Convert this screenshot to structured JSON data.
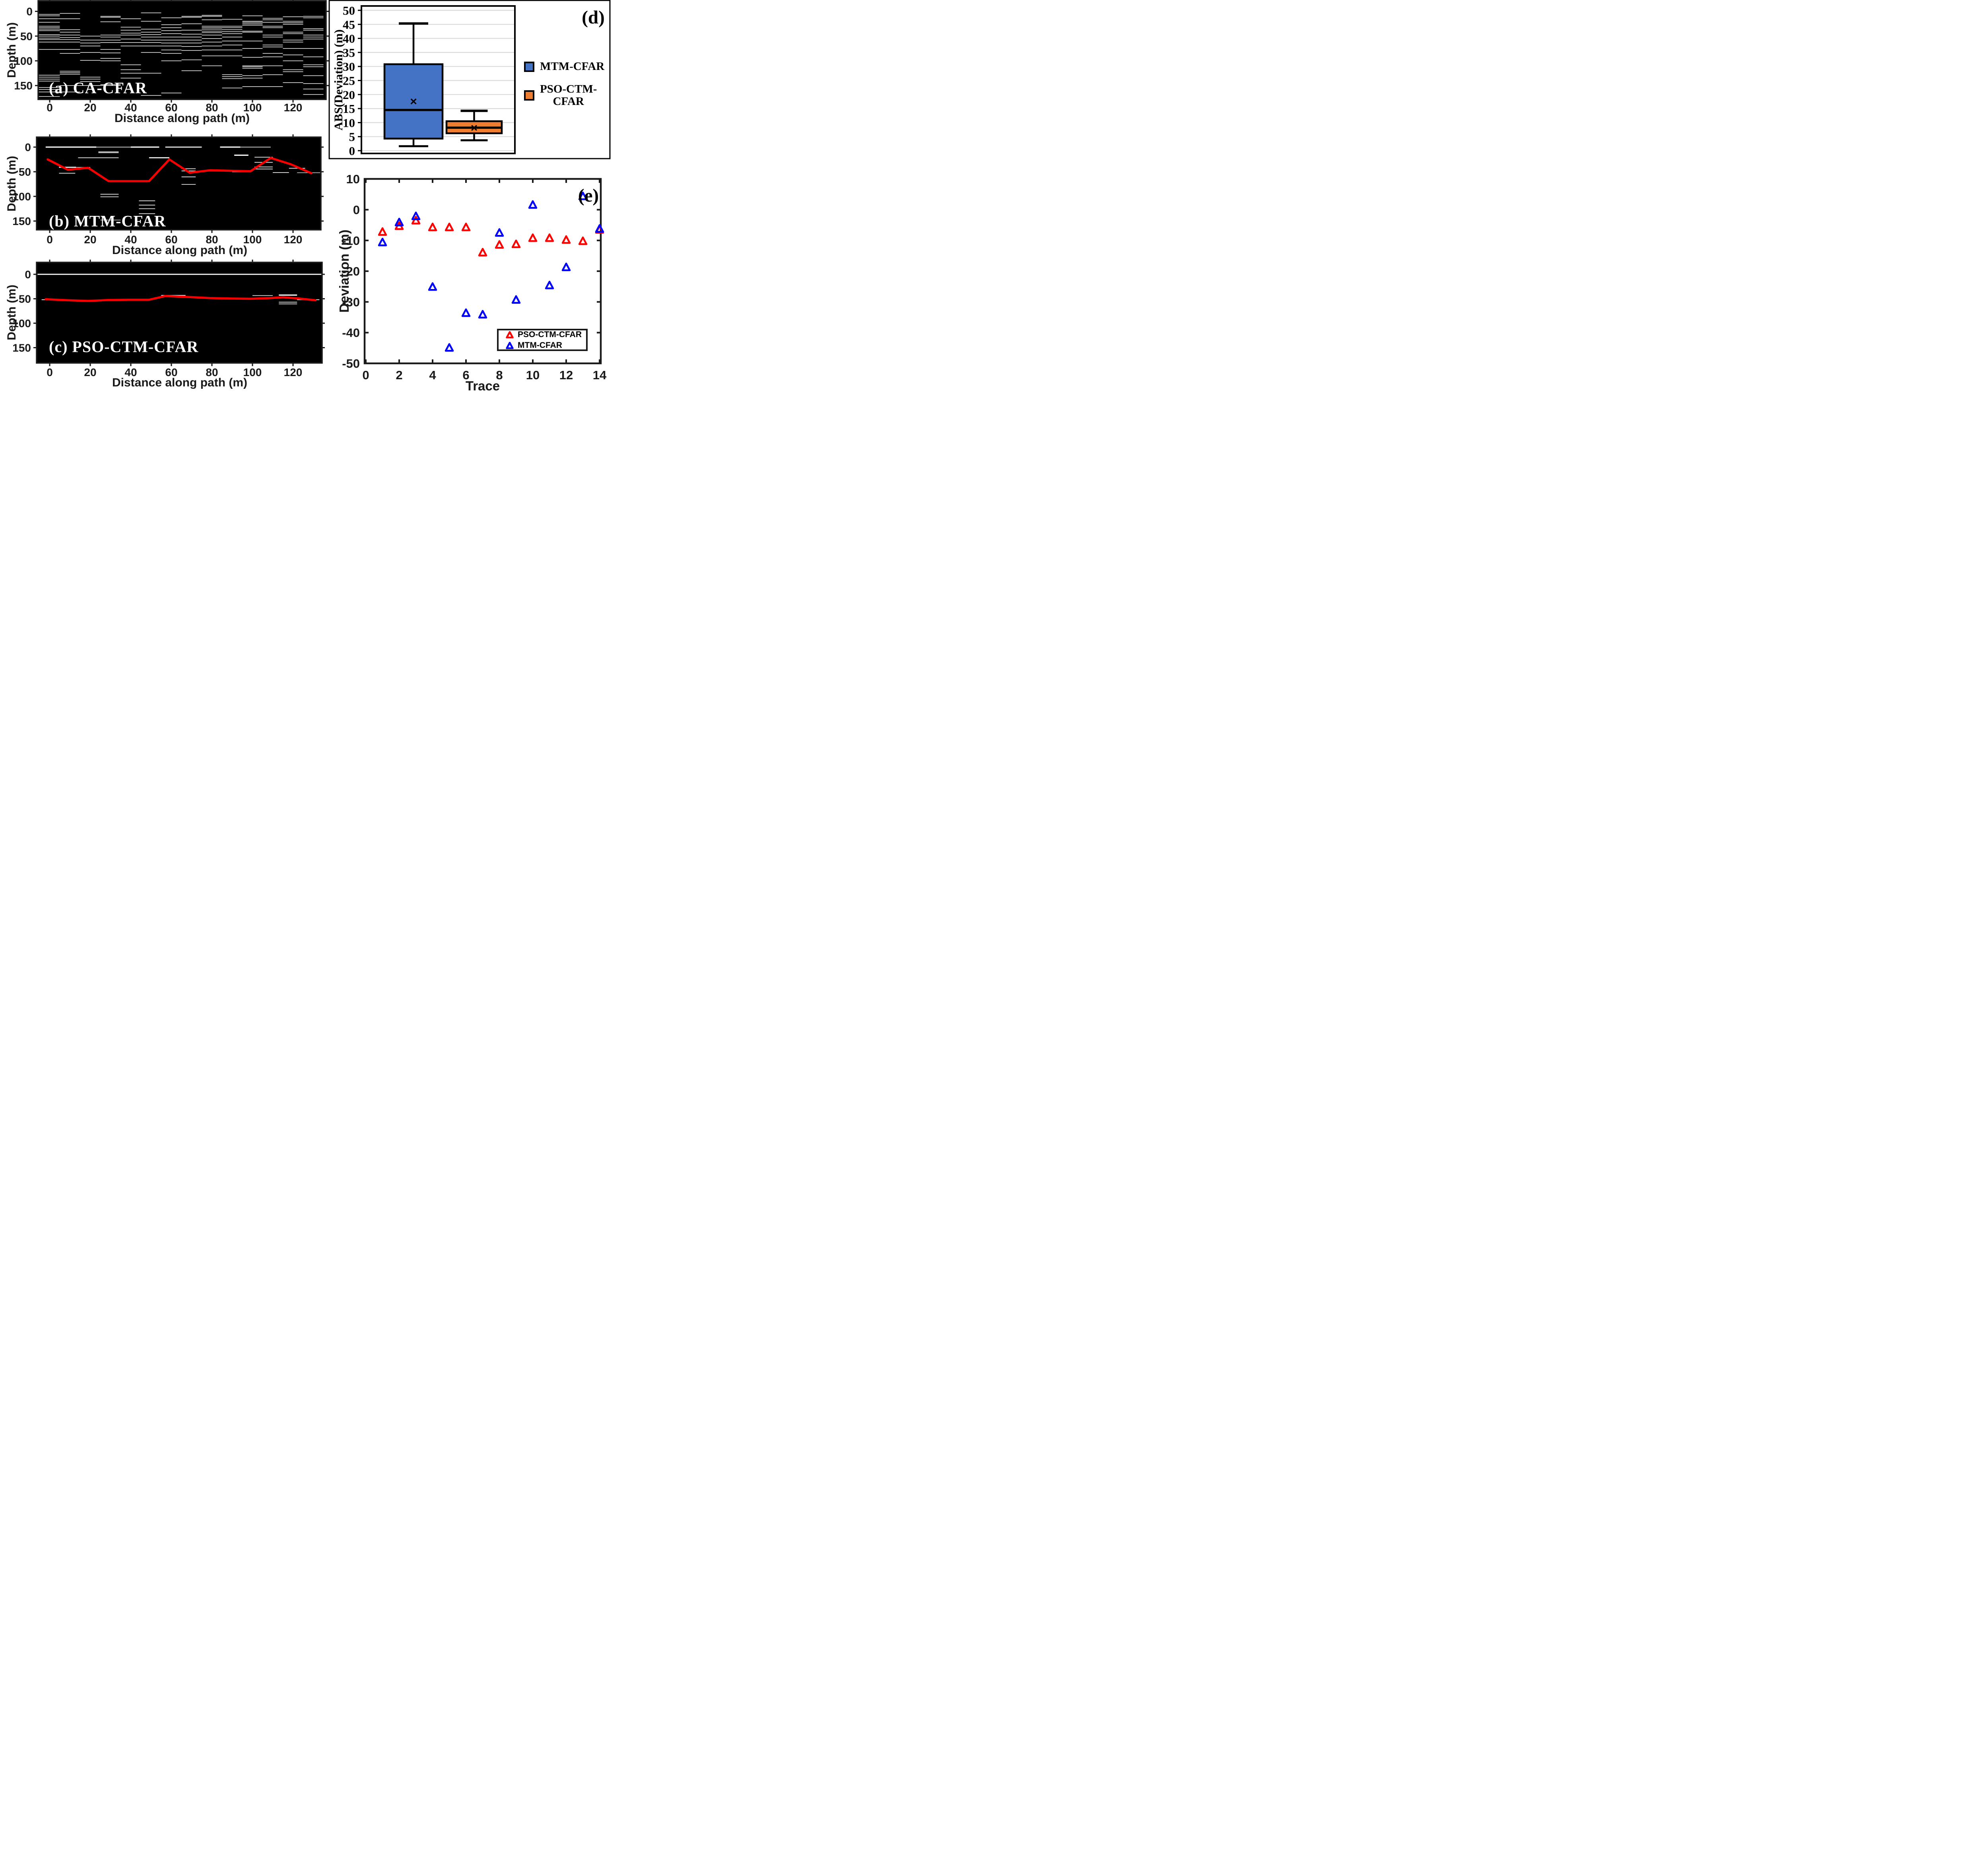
{
  "figure": {
    "background": "#ffffff",
    "axis_color": "#1a1a1a",
    "grid_color": "#d9d9d9",
    "pick_line_color": "#f50000",
    "radargram_bg": "#000000",
    "detection_color": "#ffffff"
  },
  "panels": {
    "a": {
      "label": "(a) CA-CFAR",
      "ylabel": "Depth (m)",
      "xlabel": "Distance along path (m)",
      "yticks": [
        0,
        50,
        100,
        150
      ],
      "xticks": [
        0,
        20,
        40,
        60,
        80,
        100,
        120
      ]
    },
    "b": {
      "label": "(b) MTM-CFAR",
      "ylabel": "Depth (m)",
      "xlabel": "Distance along path (m)",
      "yticks": [
        0,
        50,
        100,
        150
      ],
      "xticks": [
        0,
        20,
        40,
        60,
        80,
        100,
        120
      ]
    },
    "c": {
      "label": "(c) PSO-CTM-CFAR",
      "ylabel": "Depth (m)",
      "xlabel": "Distance along path (m)",
      "yticks": [
        0,
        50,
        100,
        150
      ],
      "xticks": [
        0,
        20,
        40,
        60,
        80,
        100,
        120
      ]
    },
    "d": {
      "tag": "(d)",
      "ylabel": "ABS(Deviation) (m)",
      "yticks": [
        0,
        5,
        10,
        15,
        20,
        25,
        30,
        35,
        40,
        45,
        50
      ],
      "legend": [
        {
          "label": "MTM-CFAR",
          "color": "#4472c4"
        },
        {
          "line1": "PSO-CTM-",
          "line2": "CFAR",
          "color": "#ed7d31"
        }
      ]
    },
    "e": {
      "tag": "(e)",
      "ylabel": "Deviation (m)",
      "xlabel": "Trace",
      "yticks": [
        10,
        0,
        -10,
        -20,
        -30,
        -40,
        -50
      ],
      "xticks": [
        0,
        2,
        4,
        6,
        8,
        10,
        12,
        14
      ],
      "legend": [
        {
          "label": "PSO-CTM-CFAR",
          "color": "#ff0000"
        },
        {
          "label": "MTM-CFAR",
          "color": "#0000ff"
        }
      ]
    }
  },
  "chart_data": [
    {
      "id": "a",
      "type": "heatmap",
      "title": "(a) CA-CFAR",
      "xlabel": "Distance along path (m)",
      "ylabel": "Depth (m)",
      "xlim": [
        -6,
        136
      ],
      "ylim_depth": [
        -21,
        178
      ],
      "xticks": [
        0,
        20,
        40,
        60,
        80,
        100,
        120
      ],
      "yticks": [
        0,
        50,
        100,
        150
      ],
      "columns": [
        {
          "x0": -5.7,
          "x1": 5,
          "depths": [
            6,
            9,
            15,
            22,
            30,
            33,
            36,
            39,
            47,
            50,
            54,
            57,
            62,
            77,
            129,
            133,
            137,
            141,
            154,
            158,
            163,
            172
          ]
        },
        {
          "x0": 5,
          "x1": 15,
          "depths": [
            4,
            15,
            37,
            42,
            48,
            53,
            57,
            62,
            77,
            85,
            121,
            124,
            127,
            150,
            163
          ]
        },
        {
          "x0": 15,
          "x1": 25,
          "depths": [
            50,
            58,
            64,
            70,
            83,
            99,
            133,
            137,
            142,
            150
          ]
        },
        {
          "x0": 25,
          "x1": 35,
          "depths": [
            10,
            12,
            21,
            48,
            52,
            58,
            63,
            77,
            84,
            95,
            100,
            148,
            150
          ]
        },
        {
          "x0": 35,
          "x1": 45,
          "depths": [
            15,
            32,
            38,
            44,
            48,
            56,
            63,
            70,
            108,
            118,
            125,
            135
          ]
        },
        {
          "x0": 45,
          "x1": 55,
          "depths": [
            3,
            20,
            36,
            42,
            47,
            52,
            58,
            63,
            70,
            83,
            125,
            170
          ]
        },
        {
          "x0": 55,
          "x1": 65,
          "depths": [
            13,
            27,
            33,
            39,
            45,
            52,
            58,
            64,
            70,
            78,
            85,
            100,
            165
          ]
        },
        {
          "x0": 65,
          "x1": 75,
          "depths": [
            10,
            12,
            25,
            38,
            46,
            52,
            58,
            64,
            71,
            79,
            98,
            120
          ]
        },
        {
          "x0": 75,
          "x1": 85,
          "depths": [
            8,
            10,
            17,
            30,
            33,
            36,
            40,
            43,
            48,
            55,
            62,
            70,
            78,
            90,
            110
          ]
        },
        {
          "x0": 85,
          "x1": 95,
          "depths": [
            16,
            30,
            33,
            37,
            41,
            45,
            52,
            60,
            68,
            78,
            90,
            128,
            132,
            136,
            155
          ]
        },
        {
          "x0": 95,
          "x1": 105,
          "depths": [
            9,
            20,
            22,
            25,
            28,
            40,
            42,
            60,
            75,
            93,
            110,
            112,
            115,
            130,
            135,
            152
          ]
        },
        {
          "x0": 105,
          "x1": 115,
          "depths": [
            14,
            17,
            22,
            30,
            33,
            48,
            52,
            68,
            72,
            85,
            92,
            110,
            128,
            152
          ]
        },
        {
          "x0": 115,
          "x1": 125,
          "depths": [
            11,
            20,
            23,
            26,
            42,
            45,
            58,
            62,
            75,
            88,
            100,
            118,
            122,
            144
          ]
        },
        {
          "x0": 125,
          "x1": 135,
          "depths": [
            10,
            13,
            35,
            38,
            48,
            52,
            56,
            75,
            92,
            108,
            112,
            130,
            146,
            157,
            168
          ]
        }
      ]
    },
    {
      "id": "b",
      "type": "heatmap",
      "title": "(b) MTM-CFAR",
      "xlabel": "Distance along path (m)",
      "ylabel": "Depth (m)",
      "xlim": [
        -6.5,
        134
      ],
      "ylim_depth": [
        -20,
        168
      ],
      "xticks": [
        0,
        20,
        40,
        60,
        80,
        100,
        120
      ],
      "yticks": [
        0,
        50,
        100,
        150
      ],
      "segments": [
        [
          -2,
          23,
          0,
          3
        ],
        [
          23,
          40,
          0,
          1.6
        ],
        [
          40,
          54,
          0,
          3
        ],
        [
          57,
          75,
          0,
          2.6
        ],
        [
          84,
          94,
          0,
          3
        ],
        [
          94,
          109,
          0,
          1.6
        ],
        [
          24,
          34,
          9.6,
          1.6
        ],
        [
          24,
          34,
          11.5,
          1.6
        ],
        [
          14,
          34,
          21.6,
          1.6
        ],
        [
          49,
          59,
          21.6,
          2.6
        ],
        [
          91,
          98,
          16.4,
          3
        ],
        [
          4.6,
          13,
          41,
          2.6
        ],
        [
          13,
          20,
          41,
          1.3
        ],
        [
          4.6,
          12.6,
          53,
          1.6
        ],
        [
          101,
          110,
          20.5,
          1.6
        ],
        [
          101,
          110,
          31,
          1.6
        ],
        [
          101,
          110,
          40.3,
          1.6
        ],
        [
          101,
          110,
          44.5,
          1.6
        ],
        [
          90,
          98,
          50.3,
          1.6
        ],
        [
          110,
          118,
          51.7,
          1.6
        ],
        [
          65,
          72,
          43.9,
          1.6
        ],
        [
          65,
          72,
          48.3,
          1.6
        ],
        [
          65,
          72,
          60.4,
          1.6
        ],
        [
          65,
          72,
          75.6,
          1.6
        ],
        [
          25,
          34,
          95.6,
          1.6
        ],
        [
          25,
          34,
          100.9,
          1.6
        ],
        [
          44,
          52,
          109,
          1.6
        ],
        [
          44,
          52,
          117.6,
          1.6
        ],
        [
          44,
          52,
          125,
          1.6
        ],
        [
          44,
          52,
          135,
          1.6
        ],
        [
          25,
          35,
          148,
          1.3
        ],
        [
          118,
          126,
          43,
          1.6
        ],
        [
          122,
          134,
          52,
          1.3
        ]
      ],
      "pick_line": [
        [
          -1,
          25
        ],
        [
          9,
          46
        ],
        [
          19,
          42
        ],
        [
          29,
          69
        ],
        [
          39,
          69
        ],
        [
          49,
          69
        ],
        [
          59,
          25
        ],
        [
          69,
          52
        ],
        [
          79,
          47
        ],
        [
          89,
          48
        ],
        [
          99,
          49
        ],
        [
          109,
          22
        ],
        [
          119,
          35
        ],
        [
          129,
          53
        ]
      ]
    },
    {
      "id": "c",
      "type": "heatmap",
      "title": "(c) PSO-CTM-CFAR",
      "xlabel": "Distance along path (m)",
      "ylabel": "Depth (m)",
      "xlim": [
        -6.5,
        134
      ],
      "ylim_depth": [
        -24,
        181
      ],
      "xticks": [
        0,
        20,
        40,
        60,
        80,
        100,
        120
      ],
      "yticks": [
        0,
        50,
        100,
        150
      ],
      "segments": [
        [
          -6,
          134,
          0,
          2.8
        ],
        [
          -4,
          10,
          52,
          1.6
        ],
        [
          55,
          67,
          43,
          1.6
        ],
        [
          100,
          110,
          43.5,
          1.6
        ],
        [
          113,
          122,
          42.5,
          3
        ],
        [
          113,
          122,
          57,
          1.6
        ],
        [
          113,
          122,
          60.5,
          1.6
        ],
        [
          122,
          133,
          52,
          1.6
        ]
      ],
      "pick_line": [
        [
          -2,
          51
        ],
        [
          9,
          53
        ],
        [
          19,
          54.5
        ],
        [
          29,
          52.5
        ],
        [
          39,
          52
        ],
        [
          49,
          52
        ],
        [
          57,
          44.5
        ],
        [
          69,
          46.5
        ],
        [
          79,
          48.5
        ],
        [
          89,
          49.5
        ],
        [
          99,
          50
        ],
        [
          109,
          48.5
        ],
        [
          115,
          47
        ],
        [
          123,
          49.5
        ],
        [
          131,
          53
        ]
      ]
    },
    {
      "id": "d",
      "type": "box",
      "ylabel": "ABS(Deviation) (m)",
      "ylim": [
        0,
        50
      ],
      "ytick_step": 5,
      "grid": true,
      "legend_position": "right",
      "series": [
        {
          "name": "MTM-CFAR",
          "color": "#4472c4",
          "whislo": 1.6,
          "q1": 4.3,
          "med": 14.5,
          "q3": 30.8,
          "whishi": 45.3,
          "mean": 17.7
        },
        {
          "name": "PSO-CTM-CFAR",
          "color": "#ed7d31",
          "whislo": 3.7,
          "q1": 6.2,
          "med": 8.2,
          "q3": 10.5,
          "whishi": 14.2,
          "mean": 8.3
        }
      ]
    },
    {
      "id": "e",
      "type": "scatter",
      "xlabel": "Trace",
      "ylabel": "Deviation (m)",
      "xlim": [
        0,
        14
      ],
      "ylim": [
        -50,
        10
      ],
      "grid": false,
      "legend_position": "lower right",
      "x": [
        1,
        2,
        3,
        4,
        5,
        6,
        7,
        8,
        9,
        10,
        11,
        12,
        13,
        14
      ],
      "series": [
        {
          "name": "PSO-CTM-CFAR",
          "marker": "triangle",
          "color": "#ff0000",
          "y": [
            -7.3,
            -5.4,
            -3.6,
            -5.8,
            -5.8,
            -5.8,
            -14.0,
            -11.5,
            -11.3,
            -9.3,
            -9.3,
            -9.9,
            -10.3,
            -6.6
          ]
        },
        {
          "name": "MTM-CFAR",
          "marker": "triangle",
          "color": "#0000ff",
          "y": [
            -10.7,
            -4.2,
            -2.2,
            -25.2,
            -45.0,
            -33.7,
            -34.2,
            -7.6,
            -29.4,
            1.5,
            -24.7,
            -18.8,
            4.3,
            -6.3
          ]
        }
      ]
    }
  ]
}
